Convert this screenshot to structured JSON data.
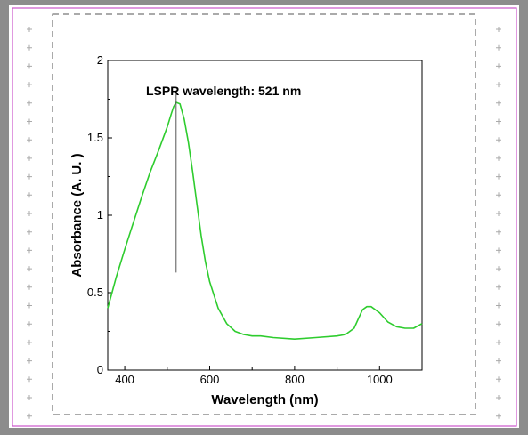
{
  "chart_data": {
    "type": "line",
    "title": "",
    "xlabel": "Wavelength (nm)",
    "ylabel": "Absorbance (A. U. )",
    "xlim": [
      360,
      1100
    ],
    "ylim": [
      0,
      2
    ],
    "xticks": [
      400,
      600,
      800,
      1000
    ],
    "xtick_labels": [
      "400",
      "600",
      "800",
      "1000"
    ],
    "yticks": [
      0,
      0.5,
      1,
      1.5,
      2
    ],
    "ytick_labels": [
      "0",
      "0.5",
      "1",
      "1.5",
      "2"
    ],
    "grid": false,
    "series": [
      {
        "color": "#2ecc2e",
        "x": [
          360,
          370,
          380,
          400,
          420,
          440,
          460,
          480,
          500,
          510,
          515,
          521,
          530,
          540,
          550,
          560,
          570,
          580,
          590,
          600,
          620,
          640,
          660,
          680,
          700,
          720,
          750,
          800,
          850,
          900,
          920,
          940,
          950,
          960,
          970,
          980,
          1000,
          1020,
          1040,
          1060,
          1080,
          1100
        ],
        "y": [
          0.4,
          0.5,
          0.6,
          0.78,
          0.95,
          1.12,
          1.28,
          1.42,
          1.57,
          1.66,
          1.7,
          1.73,
          1.72,
          1.62,
          1.47,
          1.28,
          1.07,
          0.87,
          0.7,
          0.57,
          0.4,
          0.3,
          0.25,
          0.23,
          0.22,
          0.22,
          0.21,
          0.2,
          0.21,
          0.22,
          0.23,
          0.27,
          0.33,
          0.39,
          0.41,
          0.41,
          0.37,
          0.31,
          0.28,
          0.27,
          0.27,
          0.3
        ]
      }
    ],
    "annotations": [
      {
        "text": "LSPR wavelength: 521 nm",
        "x": 521,
        "y_from": 0.63,
        "y_to": 1.8
      }
    ]
  },
  "colors": {
    "background": "#8c8c8c",
    "sheet": "#ffffff",
    "border_magenta": "#cc55cc",
    "dashed_border": "#555555",
    "line_green": "#2ecc2e"
  }
}
